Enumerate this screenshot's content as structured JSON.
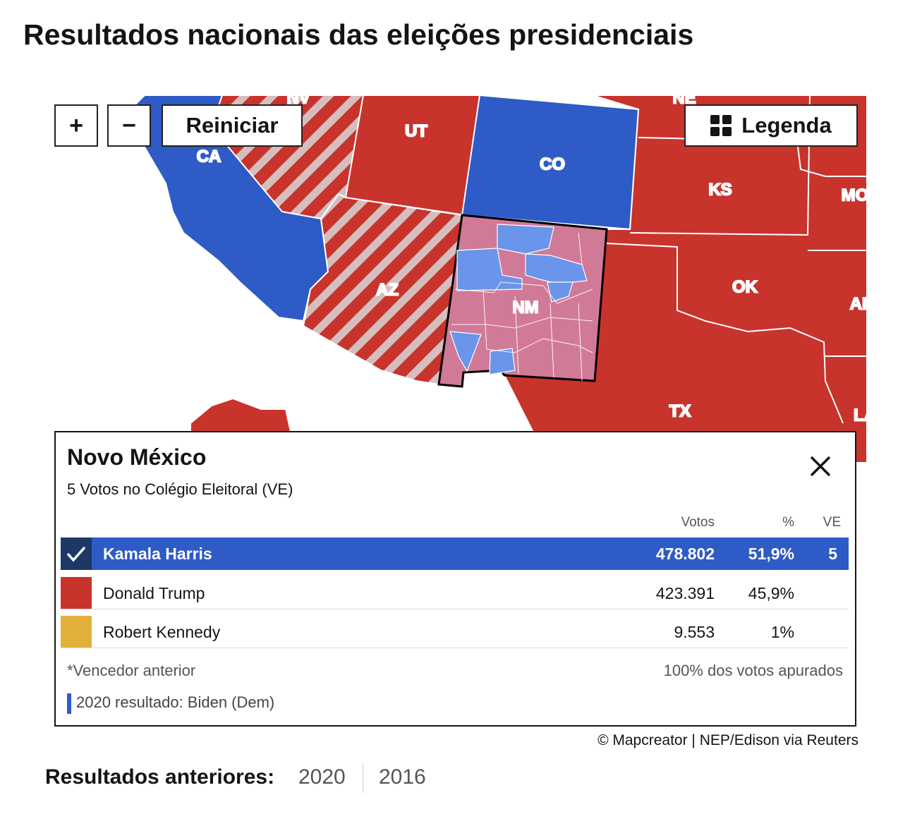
{
  "header": {
    "title": "Resultados nacionais das eleições presidenciais"
  },
  "controls": {
    "zoom_in": "+",
    "zoom_out": "−",
    "reset": "Reiniciar",
    "legend": "Legenda"
  },
  "map": {
    "labels": [
      "NV",
      "NE",
      "UT",
      "CA",
      "CO",
      "KS",
      "MO",
      "OK",
      "AZ",
      "NM",
      "AR",
      "TX",
      "LA"
    ]
  },
  "panel": {
    "title": "Novo México",
    "subtitle": "5 Votos no Colégio Eleitoral (VE)",
    "columns": [
      "Votos",
      "%",
      "VE"
    ],
    "rows": [
      [
        "Kamala Harris",
        "478.802",
        "51,9%",
        "5"
      ],
      [
        "Donald Trump",
        "423.391",
        "45,9%",
        ""
      ],
      [
        "Robert Kennedy",
        "9.553",
        "1%",
        ""
      ]
    ],
    "footnote": "*Vencedor anterior",
    "counted": "100% dos votos apurados",
    "previous": "2020 resultado: Biden (Dem)"
  },
  "credit": "© Mapcreator | NEP/Edison via Reuters",
  "previous_results": {
    "label": "Resultados anteriores:",
    "years": [
      "2020",
      "2016"
    ]
  }
}
